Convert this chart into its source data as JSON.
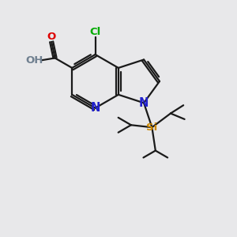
{
  "background_color": "#e8e8ea",
  "bond_color": "#1a1a1a",
  "N_color": "#2222cc",
  "O_color": "#dd0000",
  "Cl_color": "#00aa00",
  "Si_color": "#cc8800",
  "H_color": "#708090",
  "figsize": [
    3.0,
    3.0
  ],
  "dpi": 100,
  "xlim": [
    0,
    10
  ],
  "ylim": [
    0,
    10
  ]
}
